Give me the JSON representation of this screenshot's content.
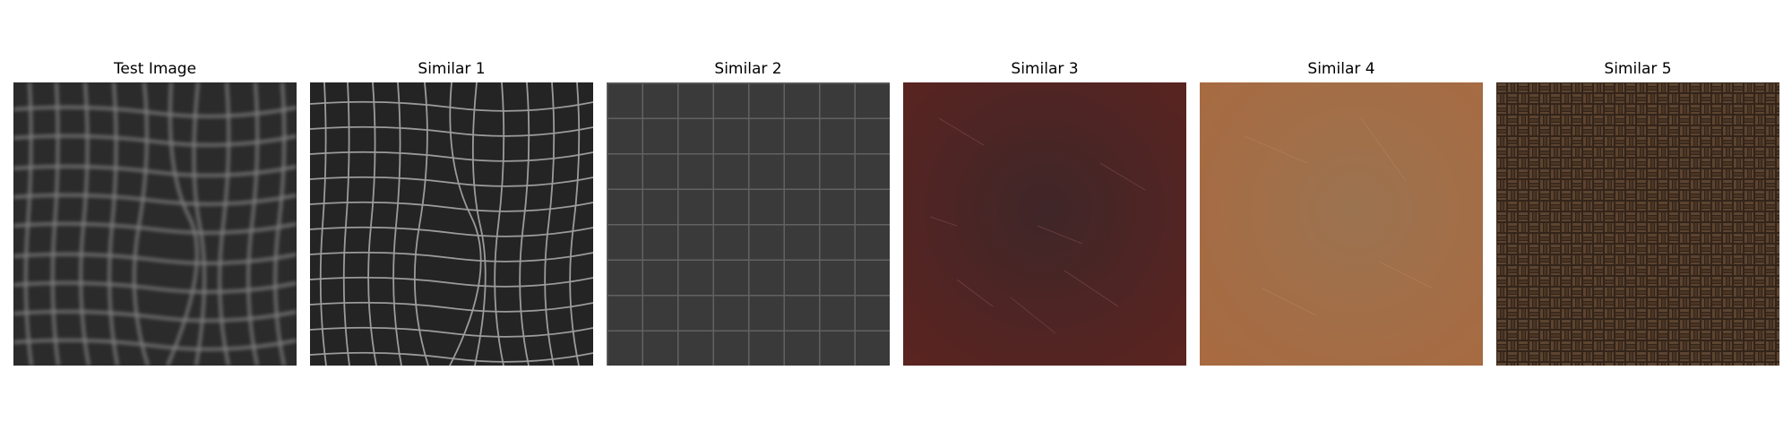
{
  "panels": [
    {
      "title": "Test Image",
      "texture": "blurred dark crocodile leather",
      "base_color": "#2b2b2b",
      "line_color": "#8e8e8e"
    },
    {
      "title": "Similar 1",
      "texture": "sharp dark crocodile leather",
      "base_color": "#242424",
      "line_color": "#a8a8a8"
    },
    {
      "title": "Similar 2",
      "texture": "grey grid fabric",
      "base_color": "#3d3d3d",
      "line_color": "#6a6a6a"
    },
    {
      "title": "Similar 3",
      "texture": "scratched dark red leather",
      "base_color": "#4e2222",
      "line_color": "#7a4040"
    },
    {
      "title": "Similar 4",
      "texture": "tan brown leather",
      "base_color": "#a06a45",
      "line_color": "#b88058"
    },
    {
      "title": "Similar 5",
      "texture": "brown basketweave parquet",
      "base_color": "#3b2a1c",
      "line_color": "#6b4e34"
    }
  ]
}
